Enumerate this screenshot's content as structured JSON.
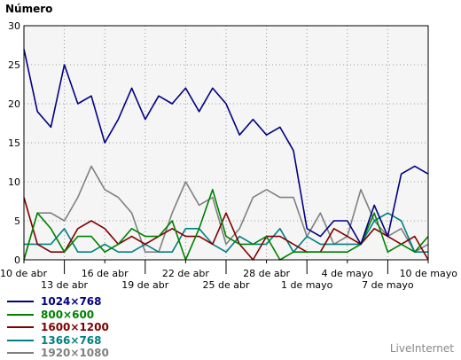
{
  "chart_data": {
    "type": "line",
    "ylabel": "Número",
    "ylim": [
      0,
      30
    ],
    "yticks": [
      0,
      5,
      10,
      15,
      20,
      25,
      30
    ],
    "x_start": "10 de abr",
    "x_end": "10 de mayo",
    "tick_labels": [
      {
        "label": "10 de abr",
        "row": 0
      },
      {
        "label": "13 de abr",
        "row": 1
      },
      {
        "label": "16 de abr",
        "row": 0
      },
      {
        "label": "19 de abr",
        "row": 1
      },
      {
        "label": "22 de abr",
        "row": 0
      },
      {
        "label": "25 de abr",
        "row": 1
      },
      {
        "label": "28 de abr",
        "row": 0
      },
      {
        "label": "1 de mayo",
        "row": 1
      },
      {
        "label": "4 de mayo",
        "row": 0
      },
      {
        "label": "7 de mayo",
        "row": 1
      },
      {
        "label": "10 de mayo",
        "row": 0
      }
    ],
    "grid": true,
    "legend_position": "bottom-left",
    "series": [
      {
        "name": "1024×768",
        "color": "#000080",
        "values": [
          27,
          19,
          17,
          25,
          20,
          21,
          15,
          18,
          22,
          18,
          21,
          20,
          22,
          19,
          22,
          20,
          16,
          18,
          16,
          17,
          14,
          4,
          3,
          5,
          5,
          2,
          7,
          3,
          11,
          12,
          11
        ]
      },
      {
        "name": "800×600",
        "color": "#008000",
        "values": [
          0,
          6,
          4,
          1,
          3,
          3,
          1,
          2,
          4,
          3,
          3,
          5,
          0,
          4,
          9,
          3,
          2,
          2,
          3,
          0,
          1,
          1,
          1,
          1,
          1,
          2,
          6,
          1,
          2,
          1,
          3
        ]
      },
      {
        "name": "1600×1200",
        "color": "#800000",
        "values": [
          8,
          2,
          1,
          1,
          4,
          5,
          4,
          2,
          3,
          2,
          3,
          4,
          3,
          3,
          2,
          6,
          2,
          0,
          3,
          3,
          2,
          1,
          1,
          4,
          3,
          2,
          4,
          3,
          2,
          3,
          0
        ]
      },
      {
        "name": "1366×768",
        "color": "#008080",
        "values": [
          2,
          2,
          2,
          4,
          1,
          1,
          2,
          1,
          1,
          2,
          1,
          1,
          4,
          4,
          2,
          1,
          3,
          2,
          2,
          4,
          1,
          3,
          2,
          2,
          2,
          2,
          5,
          6,
          5,
          1,
          1
        ]
      },
      {
        "name": "1920×1080",
        "color": "#808080",
        "values": [
          0,
          6,
          6,
          5,
          8,
          12,
          9,
          8,
          6,
          1,
          1,
          6,
          10,
          7,
          8,
          2,
          4,
          8,
          9,
          8,
          8,
          3,
          6,
          2,
          3,
          9,
          5,
          3,
          4,
          1,
          2
        ]
      }
    ]
  },
  "brand": "LiveInternet"
}
